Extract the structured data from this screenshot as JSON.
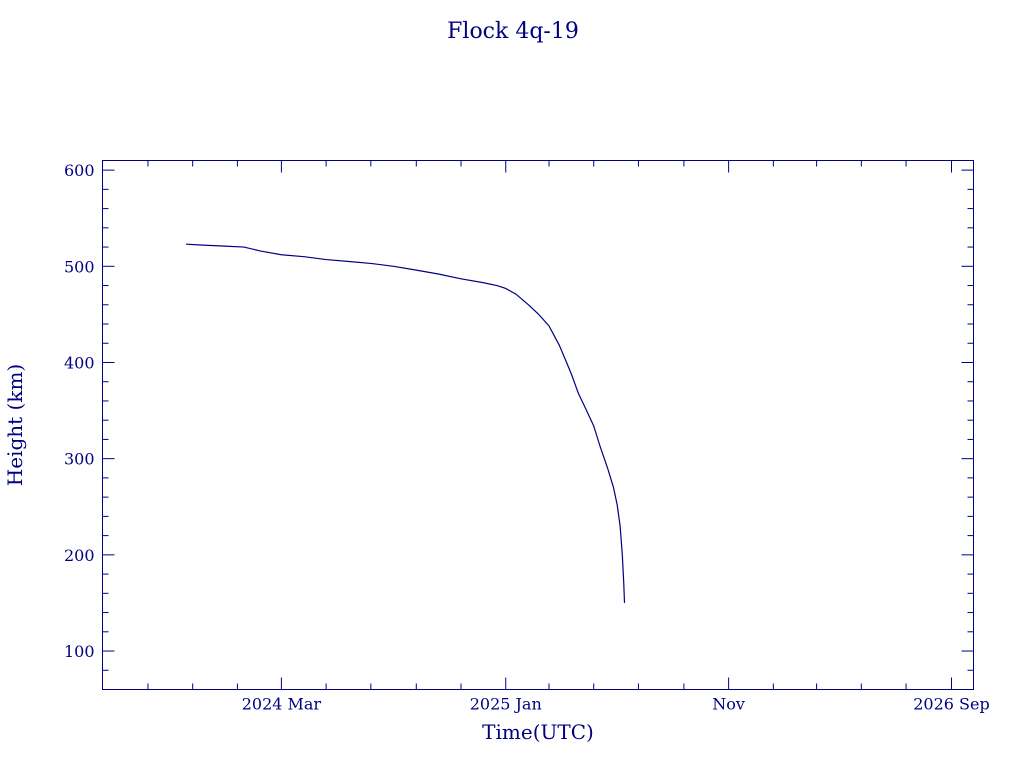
{
  "chart_data": {
    "type": "line",
    "title": "Flock 4q-19",
    "xlabel": "Time(UTC)",
    "ylabel": "Height (km)",
    "color": "#000080",
    "grid": false,
    "legend": "none",
    "x_range": [
      "2023-07-01",
      "2026-10-01"
    ],
    "y_range": [
      60,
      610
    ],
    "x_ticks": [
      {
        "date": "2024-03-01",
        "label": "2024 Mar"
      },
      {
        "date": "2025-01-01",
        "label": "2025 Jan"
      },
      {
        "date": "2025-11-01",
        "label": "Nov"
      },
      {
        "date": "2026-09-01",
        "label": "2026 Sep"
      }
    ],
    "x_minor_ticks": [
      "2023-09-01",
      "2023-11-01",
      "2024-01-01",
      "2024-05-01",
      "2024-07-01",
      "2024-09-01",
      "2024-11-01",
      "2025-03-01",
      "2025-05-01",
      "2025-07-01",
      "2025-09-01",
      "2026-01-01",
      "2026-03-01",
      "2026-05-01",
      "2026-07-01"
    ],
    "y_ticks": [
      100,
      200,
      300,
      400,
      500,
      600
    ],
    "y_minor_step": 20,
    "series": [
      {
        "x": [
          "2023-10-23",
          "2023-11-15",
          "2023-12-15",
          "2024-01-10",
          "2024-02-01",
          "2024-03-01",
          "2024-04-01",
          "2024-05-01",
          "2024-06-01",
          "2024-07-01",
          "2024-08-01",
          "2024-09-01",
          "2024-10-01",
          "2024-11-01",
          "2024-12-01",
          "2024-12-20",
          "2025-01-01",
          "2025-01-15",
          "2025-02-01",
          "2025-02-15",
          "2025-03-01",
          "2025-03-15",
          "2025-03-25",
          "2025-04-01",
          "2025-04-10",
          "2025-04-20",
          "2025-05-01",
          "2025-05-10",
          "2025-05-20",
          "2025-05-28",
          "2025-06-02",
          "2025-06-06",
          "2025-06-09",
          "2025-06-11",
          "2025-06-12"
        ],
        "y": [
          523,
          522,
          521,
          520,
          516,
          512,
          510,
          507,
          505,
          503,
          500,
          496,
          492,
          487,
          483,
          480,
          477,
          471,
          460,
          450,
          438,
          418,
          400,
          387,
          368,
          352,
          334,
          312,
          290,
          270,
          252,
          230,
          200,
          170,
          150
        ]
      }
    ]
  }
}
